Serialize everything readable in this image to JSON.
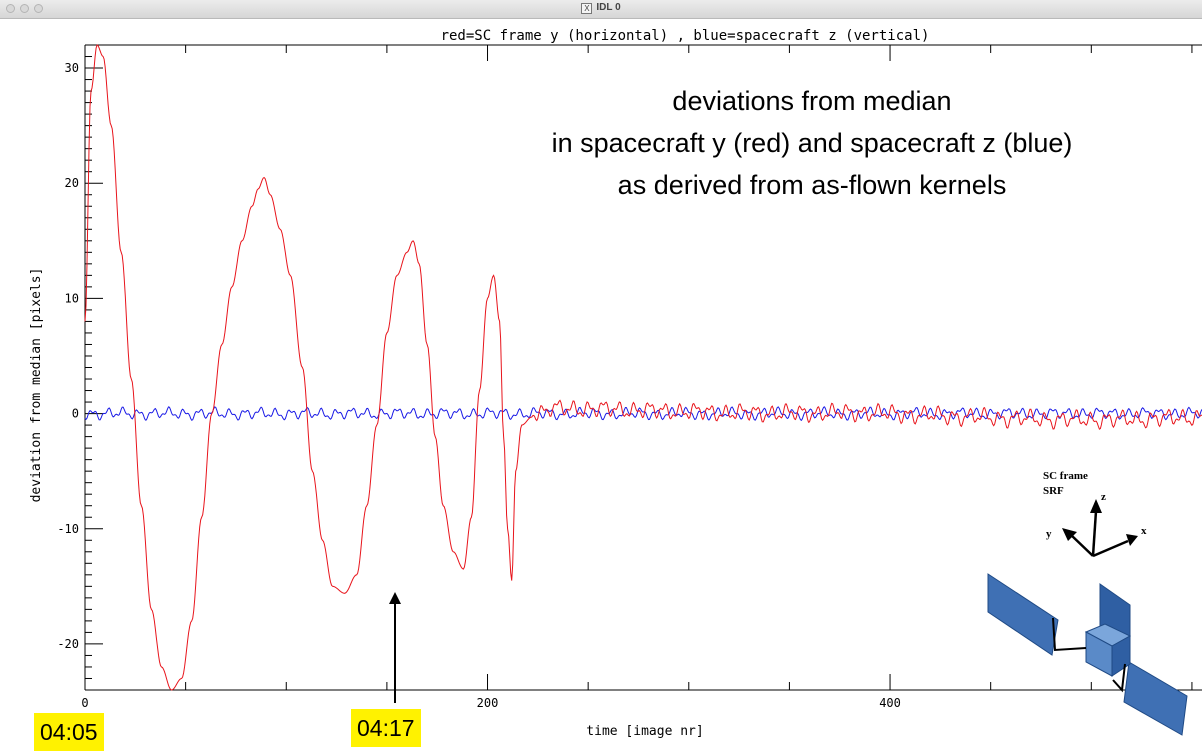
{
  "window": {
    "title": "IDL 0",
    "icon": "x11-icon"
  },
  "chart_data": {
    "type": "line",
    "title": "red=SC frame y (horizontal) , blue=spacecraft z (vertical)",
    "xlabel": "time [image nr]",
    "ylabel": "deviation from median [pixels]",
    "xlim": [
      0,
      555
    ],
    "ylim": [
      -24,
      32
    ],
    "x_ticks": [
      0,
      200,
      400
    ],
    "y_ticks": [
      -20,
      -10,
      0,
      10,
      20,
      30
    ],
    "series": [
      {
        "color": "#e8141b",
        "key_points": [
          [
            0,
            8
          ],
          [
            3,
            28
          ],
          [
            6,
            32
          ],
          [
            9,
            31
          ],
          [
            13,
            25
          ],
          [
            18,
            14
          ],
          [
            23,
            3
          ],
          [
            28,
            -8
          ],
          [
            33,
            -17
          ],
          [
            38,
            -22
          ],
          [
            43,
            -24
          ],
          [
            48,
            -23
          ],
          [
            53,
            -18
          ],
          [
            58,
            -9
          ],
          [
            63,
            0
          ],
          [
            68,
            6
          ],
          [
            73,
            11
          ],
          [
            78,
            15
          ],
          [
            83,
            18
          ],
          [
            86,
            19.5
          ],
          [
            89,
            20.5
          ],
          [
            92,
            19
          ],
          [
            97,
            16
          ],
          [
            102,
            12
          ],
          [
            108,
            4
          ],
          [
            113,
            -5
          ],
          [
            118,
            -11
          ],
          [
            123,
            -15
          ],
          [
            129,
            -15.6
          ],
          [
            135,
            -14
          ],
          [
            140,
            -8
          ],
          [
            145,
            -1
          ],
          [
            150,
            7
          ],
          [
            155,
            12
          ],
          [
            160,
            14
          ],
          [
            163,
            15
          ],
          [
            166,
            13
          ],
          [
            170,
            6
          ],
          [
            174,
            -2
          ],
          [
            178,
            -8
          ],
          [
            183,
            -12
          ],
          [
            188,
            -13.5
          ],
          [
            192,
            -9
          ],
          [
            196,
            2
          ],
          [
            200,
            10
          ],
          [
            203,
            12
          ],
          [
            206,
            8
          ],
          [
            208,
            -2
          ],
          [
            210,
            -10
          ],
          [
            212,
            -14.5
          ],
          [
            214,
            -5
          ],
          [
            217,
            -1
          ],
          [
            222,
            -0.3
          ]
        ],
        "noise_amplitude": 0.9
      },
      {
        "color": "#1a1ae6",
        "baseline": 0,
        "noise_amplitude": 0.6
      }
    ],
    "annotation": {
      "lines": [
        "deviations from median",
        "in spacecraft y (red) and spacecraft z (blue)",
        "as derived from as-flown kernels"
      ]
    },
    "markers": [
      {
        "label": "04:05",
        "x": 0
      },
      {
        "label": "04:17",
        "x": 212
      }
    ],
    "inset": {
      "title_lines": [
        "SC frame",
        "SRF"
      ],
      "axes": [
        "z",
        "y",
        "x"
      ]
    }
  }
}
